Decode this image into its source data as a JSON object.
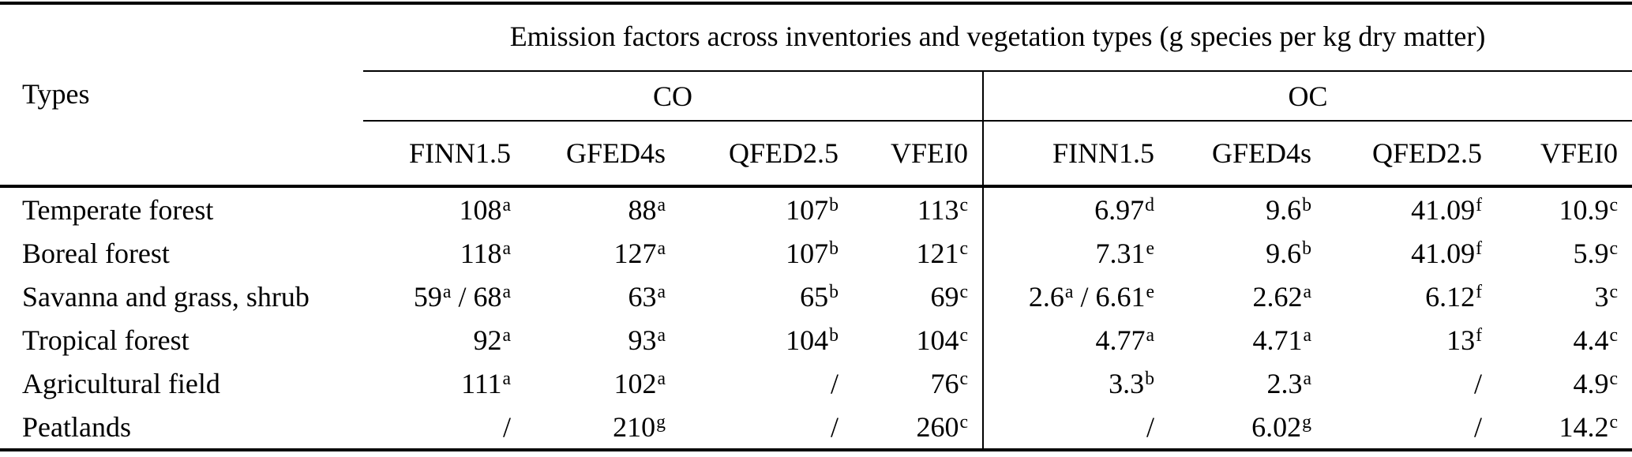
{
  "table": {
    "title": "Emission factors across inventories and vegetation types (g species per kg dry matter)",
    "row_header": "Types",
    "groups": [
      {
        "label": "CO",
        "columns": [
          "FINN1.5",
          "GFED4s",
          "QFED2.5",
          "VFEI0"
        ]
      },
      {
        "label": "OC",
        "columns": [
          "FINN1.5",
          "GFED4s",
          "QFED2.5",
          "VFEI0"
        ]
      }
    ],
    "missing_value_symbol": "/",
    "rows": [
      {
        "type": "Temperate forest",
        "values": [
          "108^a",
          "88^a",
          "107^b",
          "113^c",
          "6.97^d",
          "9.6^b",
          "41.09^f",
          "10.9^c"
        ]
      },
      {
        "type": "Boreal forest",
        "values": [
          "118^a",
          "127^a",
          "107^b",
          "121^c",
          "7.31^e",
          "9.6^b",
          "41.09^f",
          "5.9^c"
        ]
      },
      {
        "type": "Savanna and grass, shrub",
        "values": [
          "59^a / 68^a",
          "63^a",
          "65^b",
          "69^c",
          "2.6^a / 6.61^e",
          "2.62^a",
          "6.12^f",
          "3^c"
        ]
      },
      {
        "type": "Tropical forest",
        "values": [
          "92^a",
          "93^a",
          "104^b",
          "104^c",
          "4.77^a",
          "4.71^a",
          "13^f",
          "4.4^c"
        ]
      },
      {
        "type": "Agricultural field",
        "values": [
          "111^a",
          "102^a",
          "/",
          "76^c",
          "3.3^b",
          "2.3^a",
          "/",
          "4.9^c"
        ]
      },
      {
        "type": "Peatlands",
        "values": [
          "/",
          "210^g",
          "/",
          "260^c",
          "/",
          "6.02^g",
          "/",
          "14.2^c"
        ]
      }
    ],
    "text_color": "#000000",
    "background_color": "#ffffff"
  }
}
